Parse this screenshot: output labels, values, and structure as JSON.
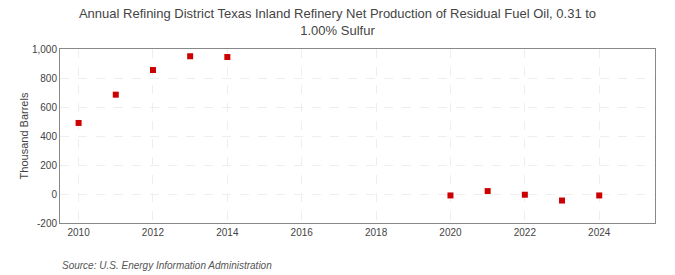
{
  "chart_data": {
    "type": "scatter",
    "title": "Annual Refining District Texas Inland Refinery Net Production of Residual Fuel Oil, 0.31 to\n1.00% Sulfur",
    "ylabel": "Thousand Barrels",
    "annotations": [
      "Source: U.S. Energy Information Administration"
    ],
    "x": [
      2010,
      2011,
      2012,
      2013,
      2014,
      2020,
      2021,
      2022,
      2023,
      2024
    ],
    "values": [
      490,
      685,
      855,
      950,
      945,
      -10,
      20,
      -5,
      -45,
      -10
    ],
    "color": "#cc0000",
    "marker": "square",
    "xlim": [
      2009.5,
      2025.5
    ],
    "xticks": [
      2010,
      2012,
      2014,
      2016,
      2018,
      2020,
      2022,
      2024
    ],
    "ylim": [
      -200,
      1000
    ],
    "yticks": [
      -200,
      0,
      200,
      400,
      600,
      800,
      {
        "value": 1000,
        "label": "1,000"
      }
    ],
    "grid": true
  }
}
